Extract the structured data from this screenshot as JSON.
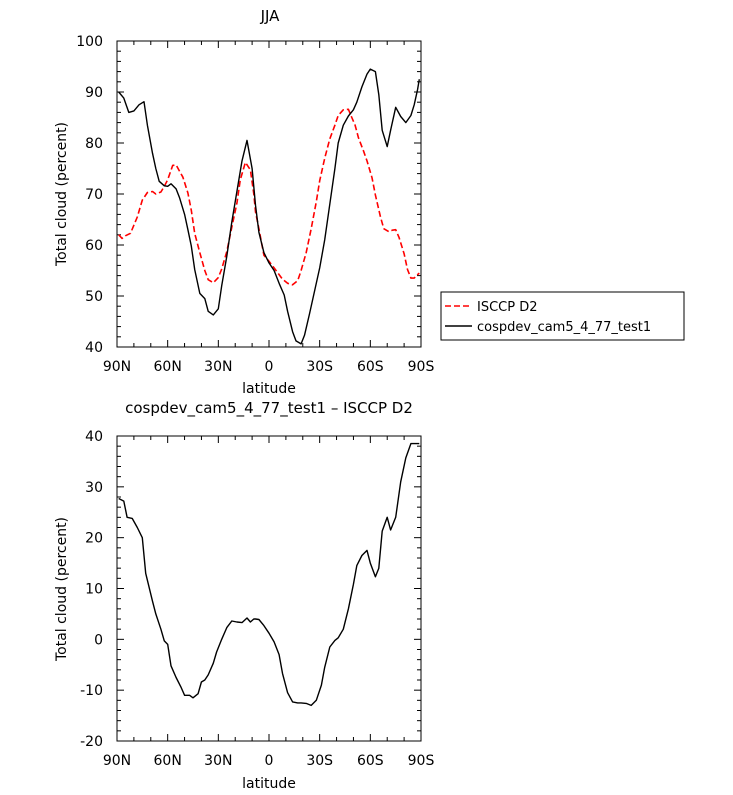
{
  "chart_data": [
    {
      "type": "line",
      "title": "JJA",
      "xlabel": "latitude",
      "ylabel": "Total cloud (percent)",
      "xlim": [
        -90,
        90
      ],
      "ylim": [
        40,
        100
      ],
      "x_tick_values": [
        -90,
        -60,
        -30,
        0,
        30,
        60,
        90
      ],
      "x_tick_labels": [
        "90N",
        "60N",
        "30N",
        "0",
        "30S",
        "60S",
        "90S"
      ],
      "y_ticks": [
        40,
        50,
        60,
        70,
        80,
        90,
        100
      ],
      "grid": false,
      "legend": "right",
      "series": [
        {
          "name": "ISCCP D2",
          "color": "#ff0000",
          "dash": "dashed",
          "x": [
            -89,
            -87,
            -85,
            -82,
            -78,
            -75,
            -72,
            -69,
            -67,
            -64,
            -62,
            -60,
            -57,
            -55,
            -53,
            -51,
            -48,
            -46,
            -44,
            -41,
            -38,
            -36,
            -33,
            -30,
            -28,
            -25,
            -22,
            -19,
            -17,
            -14,
            -11,
            -9,
            -8,
            -6,
            -3,
            0,
            3,
            6,
            8,
            11,
            14,
            17,
            19,
            22,
            25,
            28,
            30,
            33,
            36,
            39,
            41,
            44,
            47,
            49,
            51,
            53,
            56,
            58,
            61,
            63,
            66,
            68,
            71,
            73,
            75,
            77,
            80,
            82,
            84,
            86,
            88,
            89
          ],
          "values": [
            62,
            61.3,
            61.8,
            62.3,
            65.5,
            68.8,
            70.3,
            70.5,
            70,
            70.4,
            71.5,
            72.8,
            75.6,
            75.7,
            74.5,
            73.3,
            70.2,
            66.8,
            62.3,
            58.5,
            55,
            53.2,
            52.6,
            53.6,
            55.3,
            58.7,
            63.5,
            68.2,
            72.8,
            76.2,
            74.7,
            70,
            66.5,
            63.2,
            58,
            56.8,
            55.5,
            54.2,
            53.3,
            52.5,
            52.2,
            53,
            55,
            58.5,
            63.2,
            68.5,
            72.6,
            77,
            80.8,
            83.5,
            85.4,
            86.5,
            86.6,
            85,
            83.5,
            81,
            78.4,
            76.5,
            73.2,
            69.8,
            65.5,
            63.2,
            62.6,
            62.9,
            63,
            61.5,
            58.3,
            55.2,
            53.5,
            53.5,
            54.2,
            54.5
          ]
        },
        {
          "name": "cospdev_cam5_4_77_test1",
          "color": "#000000",
          "dash": "solid",
          "x": [
            -89,
            -86,
            -83,
            -80,
            -77,
            -74,
            -72,
            -69,
            -67,
            -65,
            -62,
            -60,
            -58,
            -55,
            -53,
            -50,
            -48,
            -46,
            -44,
            -41,
            -38,
            -36,
            -33,
            -30,
            -28,
            -25,
            -22,
            -19,
            -16,
            -13,
            -10,
            -8,
            -6,
            -3,
            0,
            3,
            6,
            9,
            11,
            14,
            16,
            19,
            21,
            24,
            27,
            30,
            33,
            36,
            39,
            41,
            44,
            47,
            50,
            52,
            55,
            58,
            60,
            63,
            65,
            67,
            70,
            72,
            75,
            78,
            81,
            84,
            86,
            88,
            89
          ],
          "values": [
            90,
            88.8,
            86,
            86.3,
            87.5,
            88.1,
            83.5,
            78,
            75,
            72.5,
            71.6,
            71.5,
            72,
            71,
            69.3,
            66,
            63,
            59.8,
            55.2,
            50.5,
            49.5,
            47,
            46.3,
            47.5,
            52,
            57.8,
            64.5,
            70.5,
            76.5,
            80.5,
            75,
            67.8,
            62.5,
            58.5,
            56.5,
            55,
            52.5,
            50.2,
            47,
            43,
            41.2,
            40.6,
            42.3,
            46.5,
            51,
            55.5,
            61,
            68,
            75,
            80,
            83.5,
            85.3,
            86.5,
            88,
            91,
            93.5,
            94.5,
            94,
            89.5,
            82.5,
            79.3,
            82.5,
            87,
            85.2,
            84,
            85.4,
            87.5,
            90.5,
            92.5
          ]
        }
      ]
    },
    {
      "type": "line",
      "title": "cospdev_cam5_4_77_test1 – ISCCP D2",
      "xlabel": "latitude",
      "ylabel": "Total cloud (percent)",
      "xlim": [
        -90,
        90
      ],
      "ylim": [
        -20,
        40
      ],
      "x_tick_values": [
        -90,
        -60,
        -30,
        0,
        30,
        60,
        90
      ],
      "x_tick_labels": [
        "90N",
        "60N",
        "30N",
        "0",
        "30S",
        "60S",
        "90S"
      ],
      "y_ticks": [
        -20,
        -10,
        0,
        10,
        20,
        30,
        40
      ],
      "grid": false,
      "series": [
        {
          "color": "#000000",
          "dash": "solid",
          "x": [
            -89,
            -86,
            -84,
            -81,
            -78,
            -75,
            -73,
            -69,
            -67,
            -64,
            -62,
            -60,
            -58,
            -55,
            -52,
            -50,
            -47,
            -45,
            -42,
            -40,
            -38,
            -36,
            -33,
            -31,
            -28,
            -25,
            -22,
            -19,
            -16,
            -13,
            -11,
            -9,
            -8,
            -6,
            -3,
            0,
            3,
            6,
            8,
            11,
            14,
            17,
            19,
            22,
            25,
            28,
            31,
            33,
            36,
            39,
            41,
            44,
            47,
            50,
            52,
            55,
            58,
            60,
            63,
            65,
            67,
            70,
            72,
            75,
            78,
            81,
            84,
            86,
            88,
            89
          ],
          "values": [
            27.7,
            27.2,
            24,
            23.8,
            22,
            20,
            13,
            7.5,
            5,
            2,
            -0.3,
            -1,
            -5.2,
            -7.5,
            -9.5,
            -11,
            -11,
            -11.5,
            -10.7,
            -8.4,
            -8,
            -7,
            -4.7,
            -2.5,
            0,
            2.3,
            3.6,
            3.4,
            3.3,
            4.2,
            3.4,
            4,
            4,
            3.9,
            2.7,
            1.2,
            -0.5,
            -3,
            -6.7,
            -10.5,
            -12.3,
            -12.5,
            -12.5,
            -12.6,
            -13,
            -12,
            -9,
            -5.5,
            -1.5,
            -0.2,
            0.3,
            2,
            6,
            10.8,
            14.5,
            16.5,
            17.5,
            15,
            12.3,
            14,
            21.3,
            24,
            21.5,
            24,
            31,
            35.7,
            38.5,
            38.5,
            38.5,
            38.5
          ]
        }
      ]
    }
  ]
}
